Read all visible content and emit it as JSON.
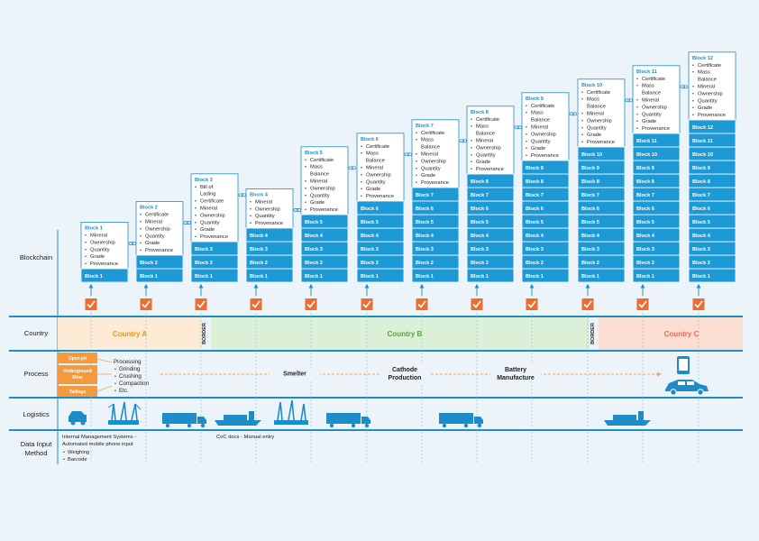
{
  "rows": {
    "blockchain": "Blockchain",
    "country": "Country",
    "process": "Process",
    "logistics": "Logistics",
    "data_input_line1": "Data Input",
    "data_input_line2": "Method"
  },
  "blocks": [
    {
      "title": "Block 1",
      "items": [
        "Mineral",
        "Ownership",
        "Quantity",
        "Grade",
        "Provenance"
      ]
    },
    {
      "title": "Block 2",
      "items": [
        "Certificate",
        "Mineral",
        "Ownership",
        "Quantity",
        "Grade",
        "Provenance"
      ]
    },
    {
      "title": "Block 3",
      "items": [
        "Bill of|Lading",
        "Certificate",
        "Mineral",
        "Ownership",
        "Quantity",
        "Grade",
        "Provenance"
      ]
    },
    {
      "title": "Block 4",
      "items": [
        "Mineral",
        "Ownership",
        "Quantity",
        "Provenance"
      ]
    },
    {
      "title": "Block 5",
      "items": [
        "Certificate",
        "Mass|Balance",
        "Mineral",
        "Ownership",
        "Quantity",
        "Grade",
        "Provenance"
      ]
    },
    {
      "title": "Block 6",
      "items": [
        "Certificate",
        "Mass|Balance",
        "Mineral",
        "Ownership",
        "Quantity",
        "Grade",
        "Provenance"
      ]
    },
    {
      "title": "Block 7",
      "items": [
        "Certificate",
        "Mass|Balance",
        "Mineral",
        "Ownership",
        "Quantity",
        "Grade",
        "Provenance"
      ]
    },
    {
      "title": "Block 8",
      "items": [
        "Certificate",
        "Mass|Balance",
        "Mineral",
        "Ownership",
        "Quantity",
        "Grade",
        "Provenance"
      ]
    },
    {
      "title": "Block 9",
      "items": [
        "Certificate",
        "Mass|Balance",
        "Mineral",
        "Ownership",
        "Quantity",
        "Grade",
        "Provenance"
      ]
    },
    {
      "title": "Block 10",
      "items": [
        "Certificate",
        "Mass|Balance",
        "Mineral",
        "Ownership",
        "Quantity",
        "Grade",
        "Provenance"
      ]
    },
    {
      "title": "Block 11",
      "items": [
        "Certificate",
        "Mass|Balance",
        "Mineral",
        "Ownership",
        "Quantity",
        "Grade",
        "Provenance"
      ]
    },
    {
      "title": "Block 12",
      "items": [
        "Certificate",
        "Mass|Balance",
        "Mineral",
        "Ownership",
        "Quantity",
        "Grade",
        "Provenance"
      ]
    }
  ],
  "countries": [
    "Country A",
    "Country B",
    "Country C"
  ],
  "border_label": "BORDER",
  "mine_types": [
    "Open pit",
    "Underground|Mine",
    "Tailings"
  ],
  "processing": {
    "title": "Processing",
    "items": [
      "Grinding",
      "Crushing",
      "Compaction",
      "Etc."
    ]
  },
  "process_steps": [
    "Smelter",
    "Cathode|Production",
    "Battery|Manufacture"
  ],
  "data_input": {
    "left_title": "Internal Management Systems -|Automated mobile phone input",
    "left_items": [
      "Weighing",
      "Barcode"
    ],
    "right_title": "CoC docs - Manual entry"
  },
  "colors": {
    "blue": "#1e8cc6",
    "chain_blue": "#1d9ad6",
    "check_orange": "#ef6d2c",
    "country_a": "#fdebd6",
    "country_b": "#dcefd7",
    "country_c": "#fbddd2",
    "mine_orange": "#f39a3e",
    "arrow_orange": "#f5a25a",
    "label_blue": "#f0f7fc"
  }
}
